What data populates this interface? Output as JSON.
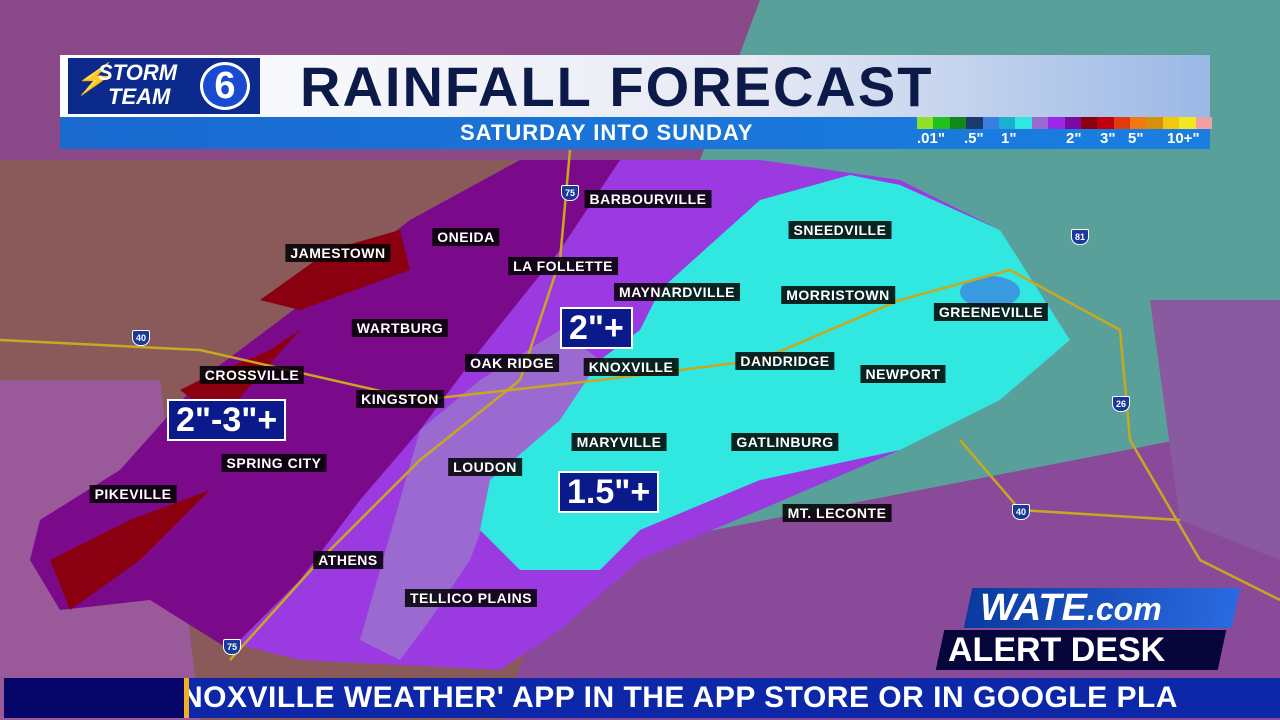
{
  "header": {
    "logo_line1": "STORM",
    "logo_line2": "TEAM",
    "logo_number": "6",
    "title": "RAINFALL FORECAST",
    "subtitle": "SATURDAY INTO SUNDAY"
  },
  "legend": {
    "colors": [
      "#8fe02a",
      "#22c01c",
      "#0f8a1a",
      "#1c3a6e",
      "#3a7ee0",
      "#1ab0d0",
      "#30e8e0",
      "#9a6ad0",
      "#9a2ae8",
      "#7a0aa0",
      "#8a0010",
      "#c00010",
      "#e03a10",
      "#f07a10",
      "#d8900c",
      "#f0c810",
      "#f0e820",
      "#f0a0a0"
    ],
    "labels": [
      ".01\"",
      ".5\"",
      "1\"",
      "2\"",
      "3\"",
      "5\"",
      "10+\""
    ]
  },
  "cities": [
    "BARBOURVILLE",
    "SNEEDVILLE",
    "JAMESTOWN",
    "ONEIDA",
    "LA FOLLETTE",
    "MAYNARDVILLE",
    "MORRISTOWN",
    "GREENEVILLE",
    "WARTBURG",
    "OAK RIDGE",
    "KNOXVILLE",
    "DANDRIDGE",
    "NEWPORT",
    "CROSSVILLE",
    "KINGSTON",
    "MARYVILLE",
    "GATLINBURG",
    "SPRING CITY",
    "LOUDON",
    "PIKEVILLE",
    "MT. LECONTE",
    "ATHENS",
    "TELLICO PLAINS"
  ],
  "amounts": [
    "2\"+",
    "2\"-3\"+",
    "1.5\"+"
  ],
  "highways": [
    "75",
    "40",
    "81",
    "26",
    "40",
    "75"
  ],
  "branding": {
    "line1": "WATE",
    "line1_suffix": ".com",
    "line2": "ALERT DESK"
  },
  "ticker": {
    "text": "NOXVILLE WEATHER' APP IN THE APP STORE OR IN GOOGLE PLA"
  }
}
